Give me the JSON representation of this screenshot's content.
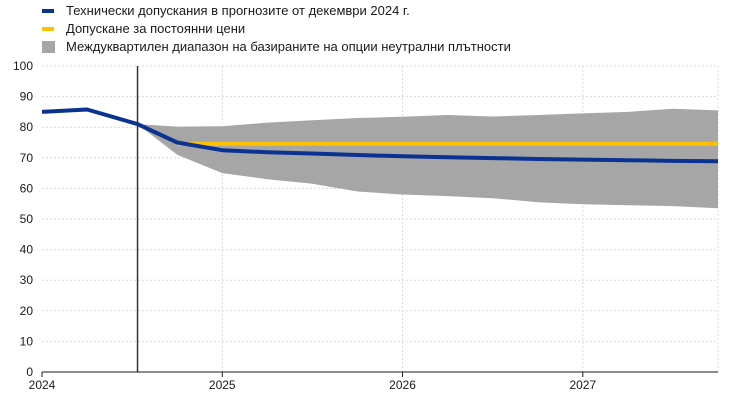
{
  "chart_data": {
    "type": "line",
    "legend": [
      {
        "label": "Технически допускания в прогнозите от декември 2024 г.",
        "kind": "line",
        "color": "#0a3291"
      },
      {
        "label": "Допускане за постоянни цени",
        "kind": "line",
        "color": "#ffc000"
      },
      {
        "label": "Междуквартилен диапазон на базираните на опции неутрални плътности",
        "kind": "area",
        "color": "#a6a6a6"
      }
    ],
    "x_ticks": [
      "2024",
      "2025",
      "2026",
      "2027"
    ],
    "y_ticks": [
      "0",
      "10",
      "20",
      "30",
      "40",
      "50",
      "60",
      "70",
      "80",
      "90",
      "100"
    ],
    "ylim": [
      0,
      100
    ],
    "xlim": [
      2024.0,
      2027.75
    ],
    "vline_x": 2024.53,
    "series": [
      {
        "name": "Технически допускания в прогнозите от декември 2024 г.",
        "color": "#0a3291",
        "x": [
          2024.0,
          2024.25,
          2024.53,
          2024.75,
          2025.0,
          2025.25,
          2025.5,
          2025.75,
          2026.0,
          2026.25,
          2026.5,
          2026.75,
          2027.0,
          2027.25,
          2027.5,
          2027.75
        ],
        "y": [
          85,
          85.8,
          81,
          75,
          72.5,
          71.8,
          71.4,
          70.9,
          70.5,
          70.2,
          69.9,
          69.6,
          69.4,
          69.2,
          69.0,
          68.9
        ]
      },
      {
        "name": "Допускане за постоянни цени",
        "color": "#ffc000",
        "x": [
          2024.75,
          2027.75
        ],
        "y": [
          74.6,
          74.6
        ]
      }
    ],
    "band": {
      "name": "Междуквартилен диапазон на базираните на опции неутрални плътности",
      "color": "#a6a6a6",
      "x": [
        2024.53,
        2024.75,
        2025.0,
        2025.25,
        2025.5,
        2025.75,
        2026.0,
        2026.25,
        2026.5,
        2026.75,
        2027.0,
        2027.25,
        2027.5,
        2027.75
      ],
      "upper": [
        81,
        80.2,
        80.3,
        81.5,
        82.3,
        83.0,
        83.4,
        84.0,
        83.5,
        84.0,
        84.5,
        85.0,
        86.0,
        85.5
      ],
      "lower": [
        81,
        71.0,
        65.0,
        63.0,
        61.5,
        59.0,
        58.0,
        57.5,
        56.8,
        55.5,
        54.8,
        54.5,
        54.2,
        53.5
      ]
    }
  }
}
